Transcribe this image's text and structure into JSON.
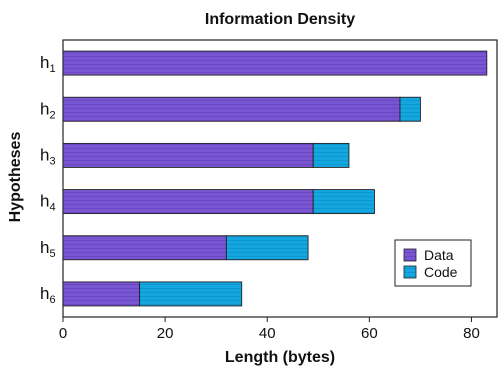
{
  "chart_data": {
    "type": "bar",
    "orientation": "horizontal",
    "stacked": true,
    "title": "Information Density",
    "xlabel": "Length (bytes)",
    "ylabel": "Hypotheses",
    "categories": [
      {
        "base": "h",
        "sub": "1"
      },
      {
        "base": "h",
        "sub": "2"
      },
      {
        "base": "h",
        "sub": "3"
      },
      {
        "base": "h",
        "sub": "4"
      },
      {
        "base": "h",
        "sub": "5"
      },
      {
        "base": "h",
        "sub": "6"
      }
    ],
    "series": [
      {
        "name": "Data",
        "color": "#7855d1",
        "values": [
          83,
          66,
          49,
          49,
          32,
          15
        ]
      },
      {
        "name": "Code",
        "color": "#14a6df",
        "values": [
          0,
          4,
          7,
          12,
          16,
          20
        ]
      }
    ],
    "xlim": [
      0,
      85
    ],
    "xticks": [
      0,
      20,
      40,
      60,
      80
    ],
    "legend_position": "bottom-right",
    "grid": false
  }
}
